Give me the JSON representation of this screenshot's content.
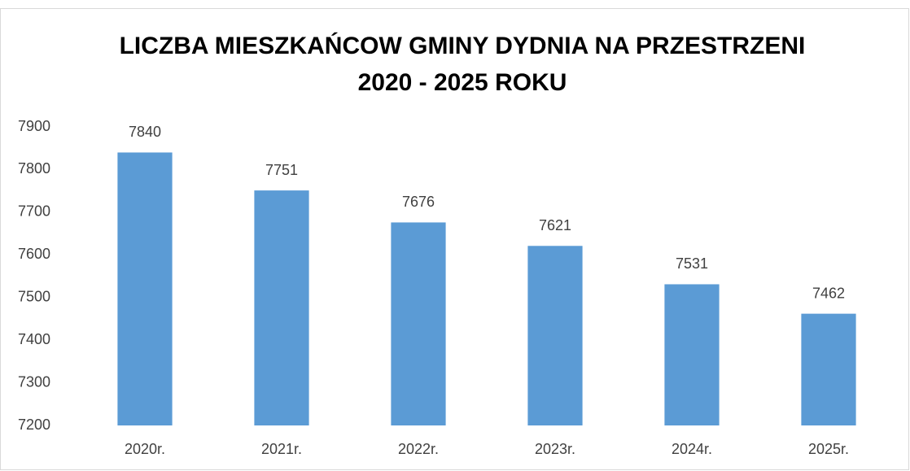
{
  "chart_data": {
    "type": "bar",
    "title": [
      "LICZBA MIESZKAŃCOW GMINY DYDNIA NA PRZESTRZENI",
      "2020 - 2025 ROKU"
    ],
    "categories": [
      "2020r.",
      "2021r.",
      "2022r.",
      "2023r.",
      "2024r.",
      "2025r."
    ],
    "values": [
      7840,
      7751,
      7676,
      7621,
      7531,
      7462
    ],
    "color": "#5b9bd5",
    "ylim": [
      7200,
      7900
    ],
    "yticks": [
      7200,
      7300,
      7400,
      7500,
      7600,
      7700,
      7800,
      7900
    ],
    "grid": false
  }
}
